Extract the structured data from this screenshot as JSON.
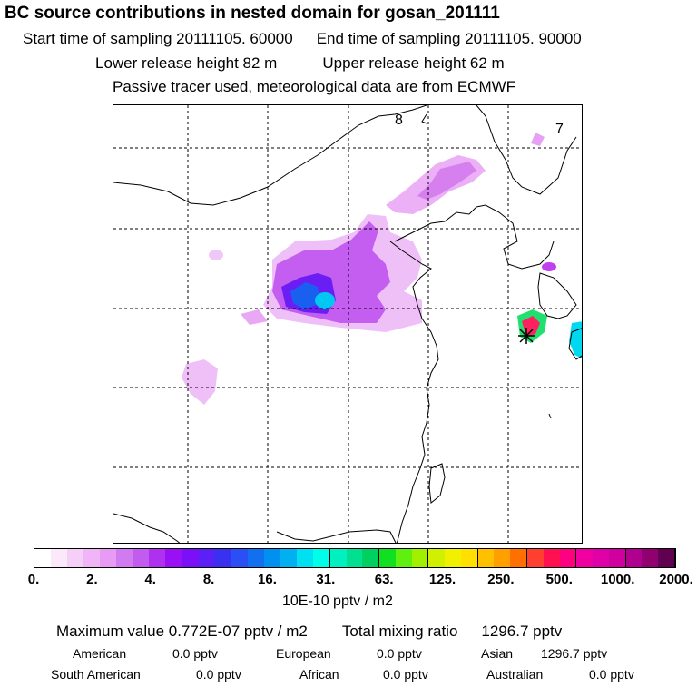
{
  "header": {
    "title": "BC  source contributions in nested domain for gosan_201111",
    "start_label": "Start time of sampling 20111105. 60000",
    "end_label": "End time of sampling 20111105. 90000",
    "lower_label": "Lower release height   82 m",
    "upper_label": "Upper release height   62 m",
    "tracer_note": "Passive tracer used, meteorological data are from ECMWF"
  },
  "map": {
    "zone_labels": [
      "8",
      "7"
    ],
    "receptor_marker": "station-marker-icon"
  },
  "colorbar": {
    "colors": [
      "#ffffff",
      "#fbe8fb",
      "#f5cff8",
      "#efb5f6",
      "#e89bf4",
      "#d27aef",
      "#c25cee",
      "#b030f0",
      "#9a10f5",
      "#7a10f8",
      "#5a20f5",
      "#3a30f0",
      "#2a50f5",
      "#1070f0",
      "#0090f0",
      "#00b0f0",
      "#00e0f0",
      "#00ffe8",
      "#00f0c0",
      "#00e090",
      "#00d060",
      "#10e020",
      "#60f010",
      "#a0f000",
      "#d0f000",
      "#f0f000",
      "#ffe000",
      "#ffc000",
      "#ffa000",
      "#ff7000",
      "#ff4030",
      "#ff1050",
      "#ff0080",
      "#f000a0",
      "#e000a8",
      "#d000a0",
      "#b00090",
      "#900070",
      "#600050"
    ],
    "tick_labels": [
      "0.",
      "2.",
      "4.",
      "8.",
      "16.",
      "31.",
      "63.",
      "125.",
      "250.",
      "500.",
      "1000.",
      "2000."
    ],
    "units": "10E-10 pptv / m2"
  },
  "summary": {
    "max_label": "Maximum value  0.772E-07 pptv / m2",
    "total_label": "Total mixing ratio",
    "total_value": "1296.7 pptv",
    "regions": [
      {
        "name": "American",
        "value": "0.0 pptv"
      },
      {
        "name": "European",
        "value": "0.0 pptv"
      },
      {
        "name": "Asian",
        "value": "1296.7 pptv"
      },
      {
        "name": "South American",
        "value": "0.0 pptv"
      },
      {
        "name": "African",
        "value": "0.0 pptv"
      },
      {
        "name": "Australian",
        "value": "0.0 pptv"
      }
    ]
  }
}
